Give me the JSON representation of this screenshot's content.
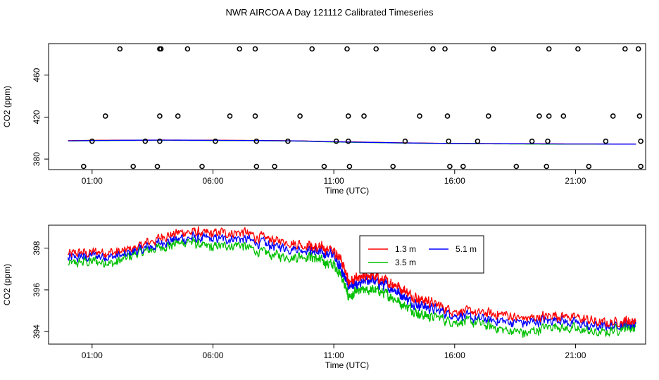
{
  "figure": {
    "title": "NWR AIRCOA A  Day 121112  Calibrated Timeseries"
  },
  "chart_data": [
    {
      "type": "scatter",
      "title": "",
      "xlabel": "Time (UTC)",
      "ylabel": "CO2 (ppm)",
      "xlim": [
        -0.8,
        23.9
      ],
      "ylim": [
        370,
        490
      ],
      "x_ticks": [
        {
          "v": 1,
          "label": "01:00"
        },
        {
          "v": 6,
          "label": "06:00"
        },
        {
          "v": 11,
          "label": "11:00"
        },
        {
          "v": 16,
          "label": "16:00"
        },
        {
          "v": 21,
          "label": "21:00"
        }
      ],
      "y_ticks": [
        {
          "v": 380,
          "label": "380"
        },
        {
          "v": 420,
          "label": "420"
        },
        {
          "v": 460,
          "label": "460"
        }
      ],
      "cal_points": {
        "times": [
          0.65,
          1.0,
          1.55,
          2.15,
          2.7,
          3.2,
          3.7,
          3.8,
          3.8,
          3.8,
          3.85,
          4.55,
          4.95,
          5.55,
          6.1,
          6.7,
          7.1,
          7.75,
          7.75,
          7.8,
          7.8,
          8.55,
          9.1,
          9.6,
          10.1,
          10.6,
          11.1,
          11.55,
          11.6,
          11.6,
          11.65,
          12.25,
          12.75,
          13.45,
          13.95,
          14.55,
          15.1,
          15.6,
          15.7,
          15.75,
          15.8,
          16.35,
          16.95,
          17.4,
          17.6,
          18.55,
          19.2,
          19.5,
          19.8,
          19.85,
          19.9,
          19.9,
          20.5,
          21.1,
          21.55,
          22.25,
          22.55,
          23.05,
          23.6,
          23.65,
          23.7,
          23.7
        ],
        "values": [
          373,
          397,
          421,
          485,
          373,
          397,
          373,
          397,
          421,
          485,
          485,
          421,
          485,
          373,
          397,
          421,
          485,
          485,
          421,
          397,
          373,
          373,
          397,
          421,
          485,
          373,
          397,
          485,
          421,
          397,
          373,
          421,
          485,
          373,
          397,
          421,
          485,
          485,
          421,
          397,
          373,
          373,
          397,
          421,
          485,
          373,
          397,
          421,
          373,
          397,
          421,
          485,
          421,
          485,
          373,
          397,
          421,
          485,
          485,
          421,
          397,
          373
        ]
      },
      "series": [
        {
          "name": "1.3 m",
          "color": "#ff0000",
          "values": [
            397.6,
            397.9,
            398.0,
            398.1,
            398.2,
            398.1,
            398.0,
            397.9,
            397.8,
            397.6,
            397.3,
            396.7,
            396.4,
            396.0,
            395.6,
            395.3,
            395.0,
            394.9,
            394.8,
            394.7,
            394.6,
            394.5,
            394.5,
            394.4,
            394.4
          ]
        },
        {
          "name": "3.5 m",
          "color": "#00c000",
          "values": [
            397.2,
            397.5,
            397.7,
            397.8,
            397.9,
            397.8,
            397.7,
            397.6,
            397.5,
            397.3,
            397.0,
            396.4,
            396.0,
            395.7,
            395.3,
            395.0,
            394.8,
            394.6,
            394.5,
            394.4,
            394.3,
            394.2,
            394.2,
            394.2,
            394.2
          ]
        },
        {
          "name": "5.1 m",
          "color": "#0000ff",
          "values": [
            397.4,
            397.7,
            397.9,
            398.0,
            398.1,
            398.0,
            397.9,
            397.8,
            397.7,
            397.5,
            397.2,
            396.6,
            396.2,
            395.9,
            395.5,
            395.2,
            395.0,
            394.8,
            394.7,
            394.6,
            394.5,
            394.4,
            394.4,
            394.3,
            394.3
          ]
        }
      ]
    },
    {
      "type": "line",
      "title": "",
      "xlabel": "Time (UTC)",
      "ylabel": "CO2 (ppm)",
      "xlim": [
        -0.8,
        23.9
      ],
      "ylim": [
        393.4,
        399.1
      ],
      "x_ticks": [
        {
          "v": 1,
          "label": "01:00"
        },
        {
          "v": 6,
          "label": "06:00"
        },
        {
          "v": 11,
          "label": "11:00"
        },
        {
          "v": 16,
          "label": "16:00"
        },
        {
          "v": 21,
          "label": "21:00"
        }
      ],
      "y_ticks": [
        {
          "v": 394,
          "label": "394"
        },
        {
          "v": 396,
          "label": "396"
        },
        {
          "v": 398,
          "label": "398"
        }
      ],
      "legend": {
        "position": "top-right",
        "order": [
          "1.3 m",
          "5.1 m",
          "3.5 m"
        ]
      },
      "x": [
        0,
        1,
        2,
        3,
        4,
        5,
        6,
        7,
        8,
        9,
        10,
        10.5,
        11,
        11.3,
        11.6,
        12,
        12.5,
        13,
        13.5,
        14,
        14.5,
        15,
        16,
        17,
        18,
        19,
        20,
        21,
        22,
        23,
        23.5
      ],
      "series": [
        {
          "name": "1.3 m",
          "color": "#ff0000",
          "values": [
            397.7,
            397.8,
            397.8,
            398.1,
            398.6,
            398.8,
            398.7,
            398.8,
            398.5,
            398.3,
            398.1,
            398.0,
            397.9,
            397.5,
            396.4,
            396.5,
            396.7,
            396.5,
            396.3,
            395.9,
            395.6,
            395.4,
            395.0,
            394.9,
            394.8,
            394.6,
            394.8,
            394.7,
            394.4,
            394.5,
            394.5
          ]
        },
        {
          "name": "3.5 m",
          "color": "#00c000",
          "values": [
            397.2,
            397.4,
            397.3,
            397.8,
            398.1,
            398.3,
            398.0,
            398.2,
            397.8,
            397.6,
            397.6,
            397.4,
            397.2,
            396.7,
            395.7,
            395.9,
            396.0,
            395.9,
            395.6,
            395.2,
            394.9,
            394.7,
            394.5,
            394.4,
            394.1,
            393.9,
            394.3,
            394.1,
            393.9,
            394.2,
            394.2
          ]
        },
        {
          "name": "5.1 m",
          "color": "#0000ff",
          "values": [
            397.5,
            397.6,
            397.6,
            397.9,
            398.3,
            398.5,
            398.4,
            398.5,
            398.2,
            398.0,
            397.9,
            397.8,
            397.7,
            397.0,
            396.2,
            396.2,
            396.5,
            396.3,
            396.0,
            395.6,
            395.3,
            395.1,
            394.8,
            394.6,
            394.5,
            394.4,
            394.6,
            394.4,
            394.2,
            394.4,
            394.4
          ]
        }
      ]
    }
  ]
}
